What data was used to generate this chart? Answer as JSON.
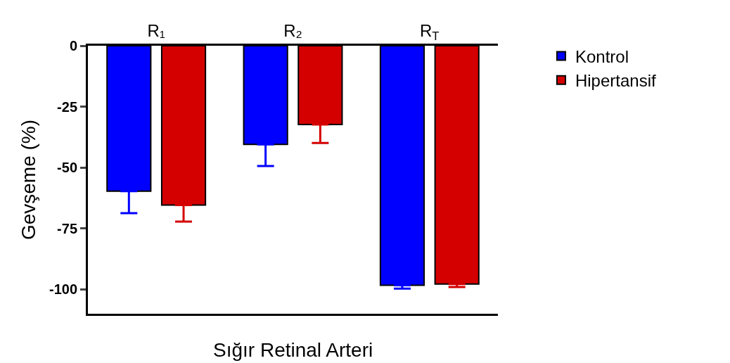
{
  "chart_data": {
    "type": "bar",
    "xlabel": "Sığır Retinal Arteri",
    "ylabel": "Gevşeme (%)",
    "categories": [
      "R₁",
      "R₂",
      "R$_{T}$"
    ],
    "series": [
      {
        "name": "Kontrol",
        "color": "#0000ff",
        "values": [
          -59.7,
          -40.5,
          -98.3
        ],
        "errors": [
          [
            -68.7,
            -59.7
          ],
          [
            -49.4,
            -40.5
          ],
          [
            -99.7,
            -98.3
          ]
        ]
      },
      {
        "name": "Hipertansif",
        "color": "#d40000",
        "values": [
          -65.4,
          -32.3,
          -97.8
        ],
        "errors": [
          [
            -72.2,
            -65.4
          ],
          [
            -39.9,
            -32.3
          ],
          [
            -99.0,
            -97.8
          ]
        ]
      }
    ],
    "ylim": [
      -110,
      0
    ],
    "yticks": [
      0,
      -25,
      -50,
      -75,
      -100
    ],
    "legend": "top right"
  }
}
